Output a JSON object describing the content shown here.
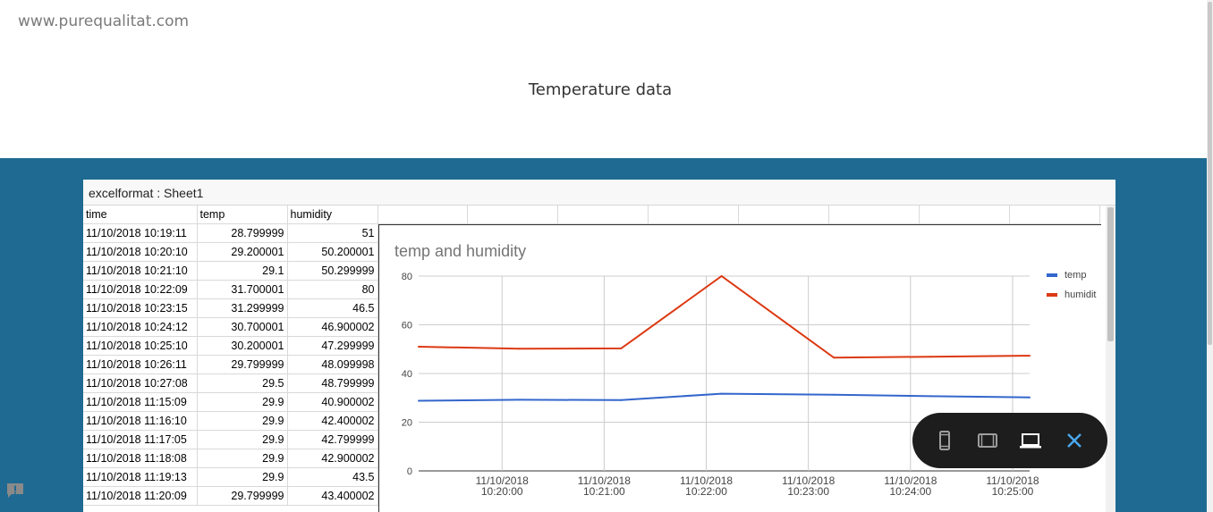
{
  "site_url": "www.purequalitat.com",
  "page_title": "Temperature data",
  "sheet": {
    "title": "excelformat : Sheet1",
    "columns": [
      "time",
      "temp",
      "humidity"
    ],
    "rows": [
      [
        "11/10/2018 10:19:11",
        "28.799999",
        "51"
      ],
      [
        "11/10/2018 10:20:10",
        "29.200001",
        "50.200001"
      ],
      [
        "11/10/2018 10:21:10",
        "29.1",
        "50.299999"
      ],
      [
        "11/10/2018 10:22:09",
        "31.700001",
        "80"
      ],
      [
        "11/10/2018 10:23:15",
        "31.299999",
        "46.5"
      ],
      [
        "11/10/2018 10:24:12",
        "30.700001",
        "46.900002"
      ],
      [
        "11/10/2018 10:25:10",
        "30.200001",
        "47.299999"
      ],
      [
        "11/10/2018 10:26:11",
        "29.799999",
        "48.099998"
      ],
      [
        "11/10/2018 10:27:08",
        "29.5",
        "48.799999"
      ],
      [
        "11/10/2018 11:15:09",
        "29.9",
        "40.900002"
      ],
      [
        "11/10/2018 11:16:10",
        "29.9",
        "42.400002"
      ],
      [
        "11/10/2018 11:17:05",
        "29.9",
        "42.799999"
      ],
      [
        "11/10/2018 11:18:08",
        "29.9",
        "42.900002"
      ],
      [
        "11/10/2018 11:19:13",
        "29.9",
        "43.5"
      ],
      [
        "11/10/2018 11:20:09",
        "29.799999",
        "43.400002"
      ]
    ]
  },
  "chart_data": {
    "type": "line",
    "title": "temp and humidity",
    "x": [
      "10:19:11",
      "10:20:10",
      "10:21:10",
      "10:22:09",
      "10:23:15",
      "10:24:12",
      "10:25:10"
    ],
    "xticks": [
      {
        "at": "10:20:00",
        "line1": "11/10/2018",
        "line2": "10:20:00"
      },
      {
        "at": "10:21:00",
        "line1": "11/10/2018",
        "line2": "10:21:00"
      },
      {
        "at": "10:22:00",
        "line1": "11/10/2018",
        "line2": "10:22:00"
      },
      {
        "at": "10:23:00",
        "line1": "11/10/2018",
        "line2": "10:23:00"
      },
      {
        "at": "10:24:00",
        "line1": "11/10/2018",
        "line2": "10:24:00"
      },
      {
        "at": "10:25:00",
        "line1": "11/10/2018",
        "line2": "10:25:00"
      }
    ],
    "xlim": [
      "10:19:11",
      "10:25:10"
    ],
    "ylim": [
      0,
      80
    ],
    "yticks": [
      0,
      20,
      40,
      60,
      80
    ],
    "grid": true,
    "legend": "right",
    "series": [
      {
        "name": "temp",
        "color": "#3366cc",
        "values": [
          28.799999,
          29.200001,
          29.1,
          31.700001,
          31.299999,
          30.700001,
          30.200001
        ]
      },
      {
        "name": "humidit",
        "color": "#dc3912",
        "values": [
          51,
          50.200001,
          50.299999,
          80,
          46.5,
          46.900002,
          47.299999
        ]
      }
    ]
  },
  "toolbar": {
    "buttons": [
      {
        "name": "phone-view-button",
        "icon": "phone-icon"
      },
      {
        "name": "tablet-view-button",
        "icon": "tablet-icon"
      },
      {
        "name": "laptop-view-button",
        "icon": "laptop-icon"
      },
      {
        "name": "close-button",
        "icon": "close-icon"
      }
    ]
  }
}
